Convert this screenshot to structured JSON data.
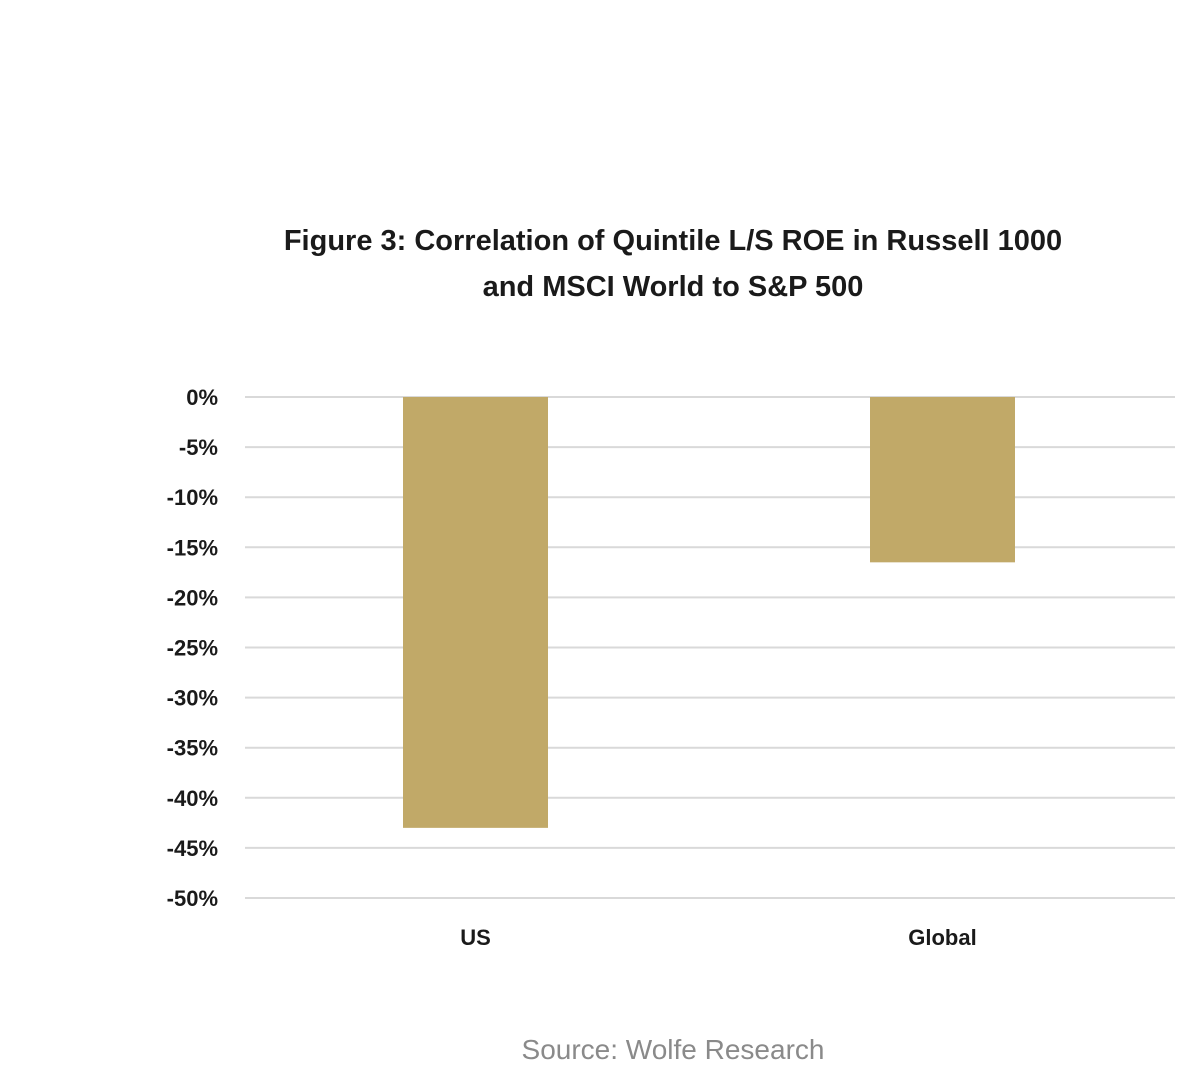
{
  "chart_data": {
    "type": "bar",
    "title_lines": [
      "Figure 3: Correlation of Quintile L/S ROE in Russell 1000",
      "and MSCI World to S&P 500"
    ],
    "categories": [
      "US",
      "Global"
    ],
    "values": [
      -43.0,
      -16.5
    ],
    "value_unit": "%",
    "ylim": [
      -50,
      0
    ],
    "yticks": [
      0,
      -5,
      -10,
      -15,
      -20,
      -25,
      -30,
      -35,
      -40,
      -45,
      -50
    ],
    "ytick_labels": [
      "0%",
      "-5%",
      "-10%",
      "-15%",
      "-20%",
      "-25%",
      "-30%",
      "-35%",
      "-40%",
      "-45%",
      "-50%"
    ],
    "xlabel": "",
    "ylabel": "",
    "grid": true,
    "legend": "none",
    "bar_color": "#C1A968",
    "source": "Source: Wolfe Research"
  }
}
